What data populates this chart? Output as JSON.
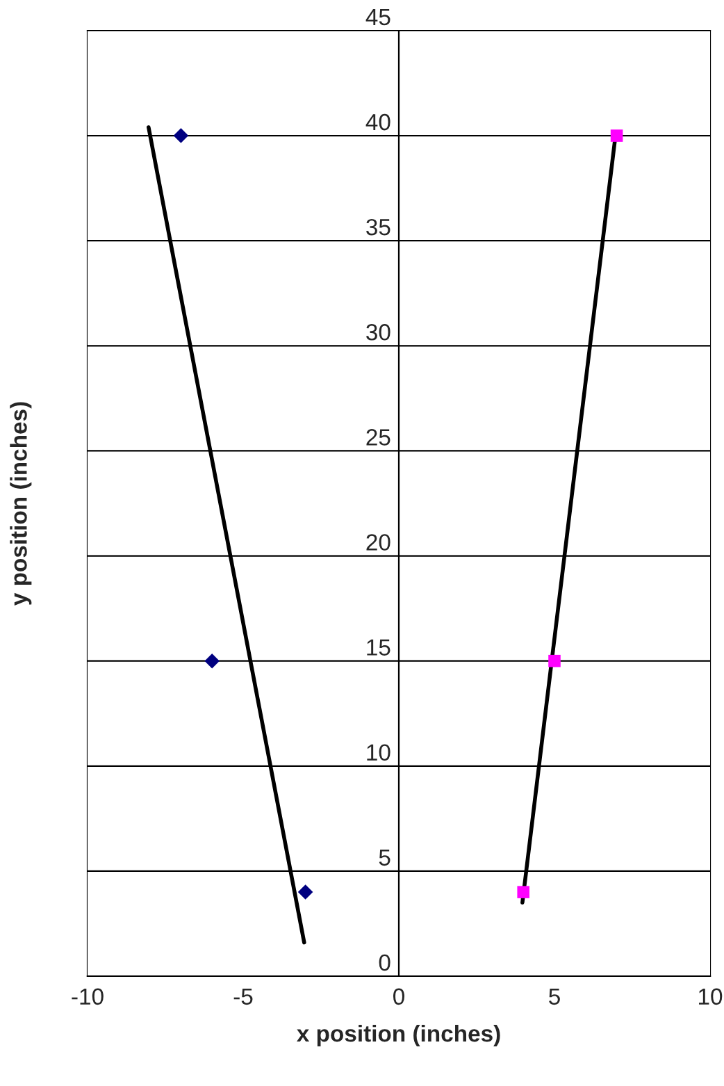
{
  "chart_data": {
    "type": "scatter",
    "xlabel": "x position (inches)",
    "ylabel": "y position (inches)",
    "xlim": [
      -10,
      10
    ],
    "xticks": [
      -10,
      -5,
      0,
      5,
      10
    ],
    "ylim": [
      0,
      45
    ],
    "yticks": [
      0,
      5,
      10,
      15,
      20,
      25,
      30,
      35,
      40,
      45
    ],
    "grid": "y",
    "series": [
      {
        "marker": "diamond",
        "color": "#000080",
        "x": [
          -7,
          -6,
          -3
        ],
        "values": [
          40,
          15,
          4
        ]
      },
      {
        "marker": "square",
        "color": "#ff00ff",
        "x": [
          4,
          5,
          7
        ],
        "values": [
          4,
          15,
          40
        ]
      },
      {
        "type": "line",
        "marker": "none",
        "color": "#000000",
        "x": [
          -8.04,
          -3.04
        ],
        "values": [
          40.4,
          1.6
        ]
      },
      {
        "type": "line",
        "marker": "none",
        "color": "#000000",
        "x": [
          3.97,
          6.96
        ],
        "values": [
          3.5,
          40.0
        ]
      }
    ]
  }
}
